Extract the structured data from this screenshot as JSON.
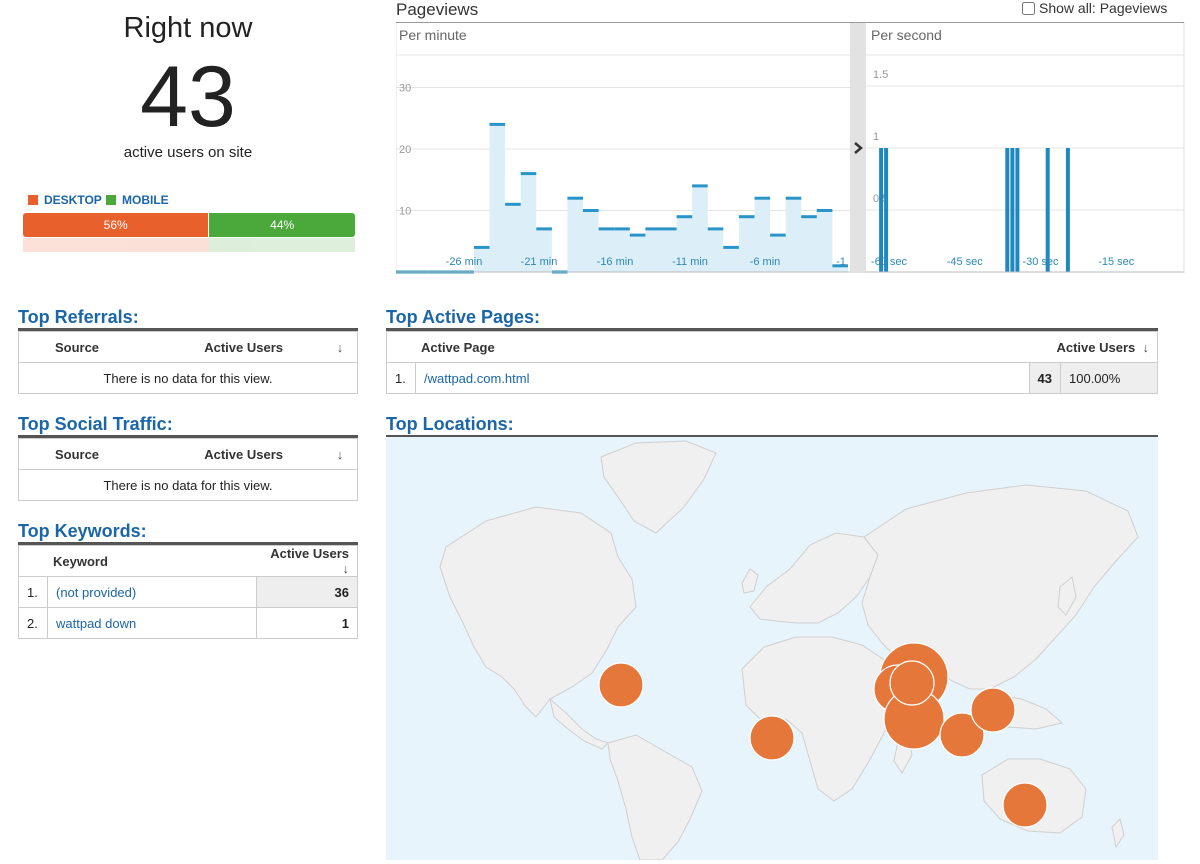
{
  "right_now": {
    "title": "Right now",
    "count": "43",
    "subtitle": "active users on site",
    "legend": [
      {
        "label": "DESKTOP",
        "color": "#e8612c"
      },
      {
        "label": "MOBILE",
        "color": "#4aa93a"
      }
    ],
    "split": [
      {
        "label": "56%",
        "value": 56,
        "color": "#e8612c"
      },
      {
        "label": "44%",
        "value": 44,
        "color": "#4aa93a"
      }
    ]
  },
  "pageviews": {
    "title": "Pageviews",
    "show_all_label": "Show all: Pageviews",
    "per_minute": {
      "label": "Per minute",
      "y_ticks": [
        "30",
        "20",
        "10"
      ],
      "x_ticks": [
        "-26 min",
        "-21 min",
        "-16 min",
        "-11 min",
        "-6 min",
        "-1"
      ],
      "values": [
        0,
        0,
        0,
        0,
        0,
        4,
        24,
        11,
        16,
        7,
        0,
        12,
        10,
        7,
        7,
        6,
        7,
        7,
        9,
        14,
        7,
        4,
        9,
        12,
        6,
        12,
        9,
        10,
        1
      ]
    },
    "per_second": {
      "label": "Per second",
      "y_ticks": [
        "1.5",
        "1",
        "0.5"
      ],
      "x_ticks": [
        "-60 sec",
        "-45 sec",
        "-30 sec",
        "-15 sec"
      ],
      "spike_seconds": [
        -59,
        -58,
        -34,
        -33,
        -32,
        -26,
        -22
      ]
    }
  },
  "top_referrals": {
    "title": "Top Referrals:",
    "headers": [
      "Source",
      "Active Users"
    ],
    "empty_text": "There is no data for this view."
  },
  "top_social": {
    "title": "Top Social Traffic:",
    "headers": [
      "Source",
      "Active Users"
    ],
    "empty_text": "There is no data for this view."
  },
  "top_keywords": {
    "title": "Top Keywords:",
    "headers": [
      "Keyword",
      "Active Users"
    ],
    "rows": [
      {
        "index": "1.",
        "keyword": "(not provided)",
        "users": "36"
      },
      {
        "index": "2.",
        "keyword": "wattpad down",
        "users": "1"
      }
    ]
  },
  "top_pages": {
    "title": "Top Active Pages:",
    "headers": [
      "Active Page",
      "Active Users"
    ],
    "rows": [
      {
        "index": "1.",
        "page": "/wattpad.com.html",
        "users": "43",
        "percent": "100.00%"
      }
    ]
  },
  "top_locations": {
    "title": "Top Locations:",
    "marker_color": "#e6773a"
  }
}
